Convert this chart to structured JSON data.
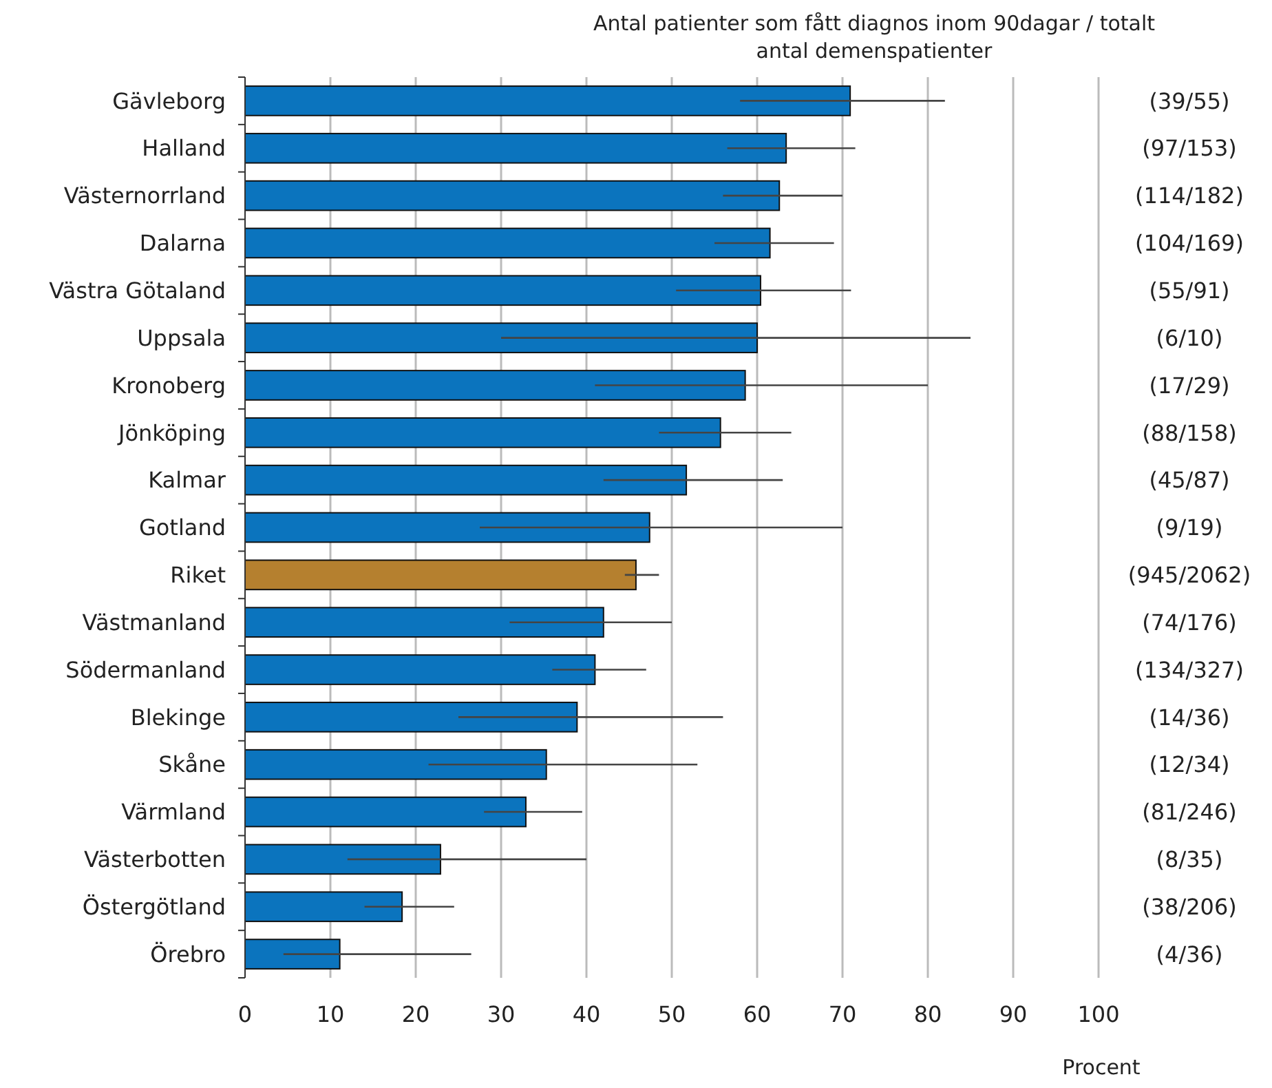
{
  "chart_data": {
    "type": "bar",
    "orientation": "horizontal",
    "title": "Antal patienter som fått diagnos inom 90dagar / totalt antal demenspatienter",
    "xlabel": "Procent",
    "categories": [
      "Gävleborg",
      "Halland",
      "Västernorrland",
      "Dalarna",
      "Västra Götaland",
      "Uppsala",
      "Kronoberg",
      "Jönköping",
      "Kalmar",
      "Gotland",
      "Riket",
      "Västmanland",
      "Södermanland",
      "Blekinge",
      "Skåne",
      "Värmland",
      "Västerbotten",
      "Östergötland",
      "Örebro"
    ],
    "values": [
      70.9,
      63.4,
      62.6,
      61.5,
      60.4,
      60,
      58.6,
      55.7,
      51.7,
      47.4,
      45.8,
      42.0,
      41.0,
      38.9,
      35.3,
      32.9,
      22.9,
      18.4,
      11.1
    ],
    "errors": [
      [
        58,
        82
      ],
      [
        56.5,
        71.5
      ],
      [
        56,
        70
      ],
      [
        55,
        69
      ],
      [
        50.5,
        71
      ],
      [
        30,
        85
      ],
      [
        41,
        80
      ],
      [
        48.5,
        64
      ],
      [
        42,
        63
      ],
      [
        27.5,
        70
      ],
      [
        44.5,
        48.5
      ],
      [
        31,
        50
      ],
      [
        36,
        47
      ],
      [
        25,
        56
      ],
      [
        21.5,
        53
      ],
      [
        28,
        39.5
      ],
      [
        12,
        40
      ],
      [
        14,
        24.5
      ],
      [
        4.5,
        26.5
      ]
    ],
    "colors": [
      "#0b74be",
      "#0b74be",
      "#0b74be",
      "#0b74be",
      "#0b74be",
      "#0b74be",
      "#0b74be",
      "#0b74be",
      "#0b74be",
      "#0b74be",
      "#b5802f",
      "#0b74be",
      "#0b74be",
      "#0b74be",
      "#0b74be",
      "#0b74be",
      "#0b74be",
      "#0b74be",
      "#0b74be"
    ],
    "annotations": [
      "(39/55)",
      "(97/153)",
      "(114/182)",
      "(104/169)",
      "(55/91)",
      "(6/10)",
      "(17/29)",
      "(88/158)",
      "(45/87)",
      "(9/19)",
      "(945/2062)",
      "(74/176)",
      "(134/327)",
      "(14/36)",
      "(12/34)",
      "(81/246)",
      "(8/35)",
      "(38/206)",
      "(4/36)"
    ],
    "xlim": [
      0,
      100
    ],
    "xticks": [
      0,
      10,
      20,
      30,
      40,
      50,
      60,
      70,
      80,
      90,
      100
    ],
    "grid": "x"
  }
}
